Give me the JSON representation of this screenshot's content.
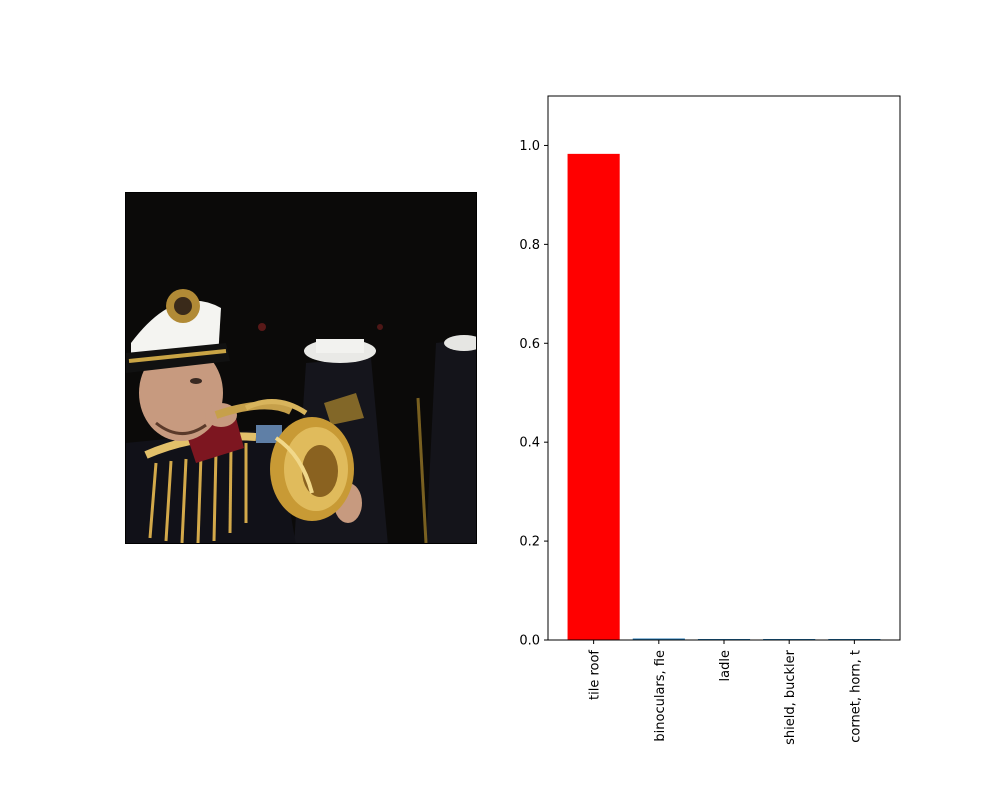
{
  "image_panel": {
    "icon": "photo-marching-band-bugler"
  },
  "chart_data": {
    "type": "bar",
    "categories": [
      "tile roof",
      "binoculars, fie",
      "ladle",
      "shield, buckler",
      "cornet, horn, t"
    ],
    "values": [
      0.983,
      0.003,
      0.002,
      0.001,
      0.001
    ],
    "bar_colors": [
      "#ff0000",
      "#1f77b4",
      "#1f77b4",
      "#1f77b4",
      "#1f77b4"
    ],
    "ylim": [
      0,
      1.1
    ],
    "yticks": [
      "0.0",
      "0.2",
      "0.4",
      "0.6",
      "0.8",
      "1.0"
    ],
    "title": "",
    "xlabel": "",
    "ylabel": "",
    "grid": false
  }
}
